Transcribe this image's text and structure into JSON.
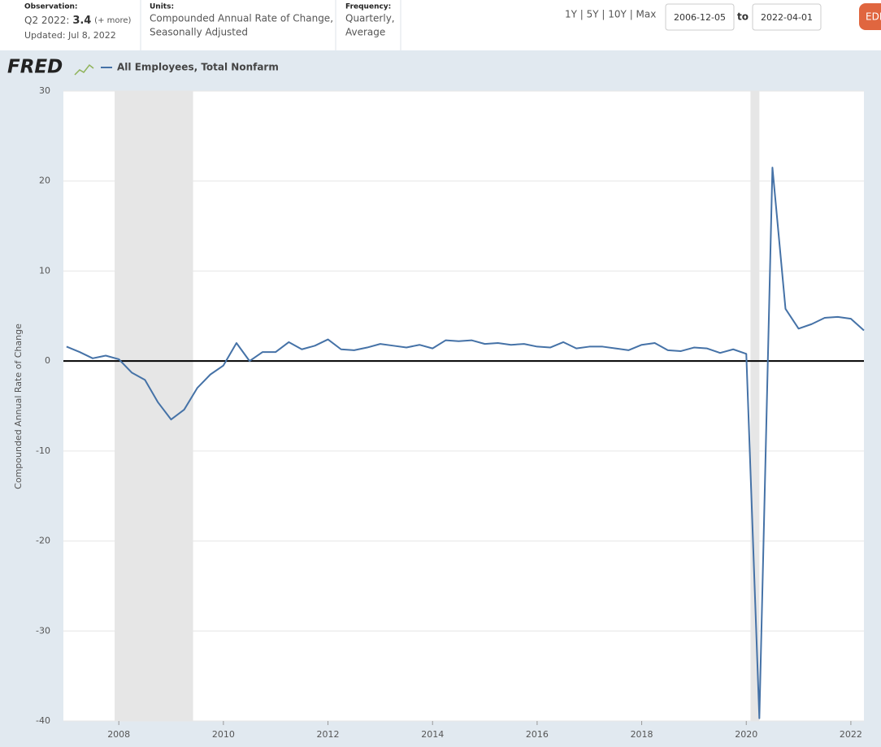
{
  "header": {
    "observation_label": "Observation:",
    "observation_period": "Q2 2022:",
    "observation_value": "3.4",
    "observation_more": "(+ more)",
    "updated": "Updated: Jul 8, 2022",
    "units_label": "Units:",
    "units_lines": [
      "Compounded Annual Rate of Change,",
      "Seasonally Adjusted"
    ],
    "frequency_label": "Frequency:",
    "frequency_lines": [
      "Quarterly,",
      "Average"
    ],
    "ranges": "1Y | 5Y | 10Y | Max",
    "start_date": "2006-12-05",
    "to": "to",
    "end_date": "2022-04-01",
    "edit_button": "EDIT"
  },
  "logo": "FRED",
  "chart_data": {
    "type": "line",
    "y_label": "Compounded Annual Rate of Change",
    "x": [
      2007.0,
      2007.25,
      2007.5,
      2007.75,
      2008.0,
      2008.25,
      2008.5,
      2008.75,
      2009.0,
      2009.25,
      2009.5,
      2009.75,
      2010.0,
      2010.25,
      2010.5,
      2010.75,
      2011.0,
      2011.25,
      2011.5,
      2011.75,
      2012.0,
      2012.25,
      2012.5,
      2012.75,
      2013.0,
      2013.25,
      2013.5,
      2013.75,
      2014.0,
      2014.25,
      2014.5,
      2014.75,
      2015.0,
      2015.25,
      2015.5,
      2015.75,
      2016.0,
      2016.25,
      2016.5,
      2016.75,
      2017.0,
      2017.25,
      2017.5,
      2017.75,
      2018.0,
      2018.25,
      2018.5,
      2018.75,
      2019.0,
      2019.25,
      2019.5,
      2019.75,
      2020.0,
      2020.25,
      2020.5,
      2020.75,
      2021.0,
      2021.25,
      2021.5,
      2021.75,
      2022.0,
      2022.25
    ],
    "series": [
      {
        "name": "All Employees, Total Nonfarm",
        "color": "#4572a7",
        "values": [
          1.6,
          1.0,
          0.3,
          0.6,
          0.2,
          -1.3,
          -2.1,
          -4.6,
          -6.5,
          -5.4,
          -3.0,
          -1.5,
          -0.5,
          2.0,
          0.0,
          1.0,
          1.0,
          2.1,
          1.3,
          1.7,
          2.4,
          1.3,
          1.2,
          1.5,
          1.9,
          1.7,
          1.5,
          1.8,
          1.4,
          2.3,
          2.2,
          2.3,
          1.9,
          2.0,
          1.8,
          1.9,
          1.6,
          1.5,
          2.1,
          1.4,
          1.6,
          1.6,
          1.4,
          1.2,
          1.8,
          2.0,
          1.2,
          1.1,
          1.5,
          1.4,
          0.9,
          1.3,
          0.8,
          -39.7,
          21.5,
          5.8,
          3.6,
          4.1,
          4.8,
          4.9,
          4.7,
          3.4
        ]
      }
    ],
    "recessions": [
      [
        2007.92,
        2009.42
      ],
      [
        2020.08,
        2020.25
      ]
    ],
    "xlim": [
      2006.94,
      2022.25
    ],
    "xticks": [
      2008,
      2010,
      2012,
      2014,
      2016,
      2018,
      2020,
      2022
    ],
    "ylim": [
      -40,
      30
    ],
    "yticks": [
      -40,
      -30,
      -20,
      -10,
      0,
      10,
      20,
      30
    ],
    "grid": true
  }
}
